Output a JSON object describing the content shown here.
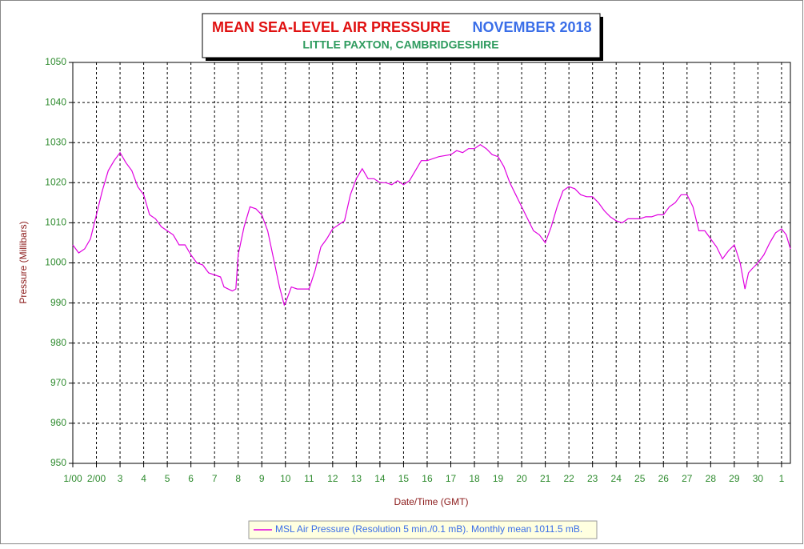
{
  "chart_data": {
    "type": "line",
    "title": "MEAN SEA-LEVEL AIR PRESSURE",
    "title_period": "NOVEMBER 2018",
    "subtitle": "LITTLE PAXTON, CAMBRIDGESHIRE",
    "x_label": "Date/Time (GMT)",
    "y_label": "Pressure (Millibars)",
    "grid": true,
    "legend": "bottom",
    "xlim": [
      0,
      30.375
    ],
    "ylim": [
      950,
      1050
    ],
    "yticks": [
      950,
      960,
      970,
      980,
      990,
      1000,
      1010,
      1020,
      1030,
      1040,
      1050
    ],
    "xticks": [
      {
        "value": 0,
        "label": "1/00"
      },
      {
        "value": 1,
        "label": "2/00"
      },
      {
        "value": 2,
        "label": "3"
      },
      {
        "value": 3,
        "label": "4"
      },
      {
        "value": 4,
        "label": "5"
      },
      {
        "value": 5,
        "label": "6"
      },
      {
        "value": 6,
        "label": "7"
      },
      {
        "value": 7,
        "label": "8"
      },
      {
        "value": 8,
        "label": "9"
      },
      {
        "value": 9,
        "label": "10"
      },
      {
        "value": 10,
        "label": "11"
      },
      {
        "value": 11,
        "label": "12"
      },
      {
        "value": 12,
        "label": "13"
      },
      {
        "value": 13,
        "label": "14"
      },
      {
        "value": 14,
        "label": "15"
      },
      {
        "value": 15,
        "label": "16"
      },
      {
        "value": 16,
        "label": "17"
      },
      {
        "value": 17,
        "label": "18"
      },
      {
        "value": 18,
        "label": "19"
      },
      {
        "value": 19,
        "label": "20"
      },
      {
        "value": 20,
        "label": "21"
      },
      {
        "value": 21,
        "label": "22"
      },
      {
        "value": 22,
        "label": "23"
      },
      {
        "value": 23,
        "label": "24"
      },
      {
        "value": 24,
        "label": "25"
      },
      {
        "value": 25,
        "label": "26"
      },
      {
        "value": 26,
        "label": "27"
      },
      {
        "value": 27,
        "label": "28"
      },
      {
        "value": 28,
        "label": "29"
      },
      {
        "value": 29,
        "label": "30"
      },
      {
        "value": 30,
        "label": "1"
      }
    ],
    "x": [
      0,
      0.25,
      0.5,
      0.75,
      1,
      1.25,
      1.5,
      1.75,
      2,
      2.25,
      2.5,
      2.75,
      3,
      3.25,
      3.5,
      3.75,
      4,
      4.25,
      4.5,
      4.75,
      5,
      5.25,
      5.5,
      5.75,
      6,
      6.25,
      6.4,
      6.75,
      6.9,
      7,
      7.25,
      7.5,
      7.75,
      8,
      8.25,
      8.5,
      8.75,
      8.95,
      9,
      9.25,
      9.5,
      9.75,
      10,
      10.25,
      10.5,
      10.75,
      11,
      11.25,
      11.5,
      11.75,
      12,
      12.25,
      12.5,
      12.75,
      13,
      13.25,
      13.5,
      13.75,
      14,
      14.25,
      14.5,
      14.75,
      15,
      15.5,
      16,
      16.25,
      16.5,
      16.75,
      17,
      17.25,
      17.5,
      17.75,
      18,
      18.25,
      18.5,
      18.75,
      19,
      19.25,
      19.5,
      19.75,
      20,
      20.25,
      20.5,
      20.75,
      21,
      21.25,
      21.5,
      21.75,
      22,
      22.25,
      22.5,
      22.75,
      23,
      23.25,
      23.5,
      23.75,
      24,
      24.25,
      24.5,
      24.75,
      25,
      25.25,
      25.5,
      25.75,
      26,
      26.25,
      26.5,
      26.75,
      27,
      27.25,
      27.5,
      27.75,
      28,
      28.25,
      28.45,
      28.6,
      28.75,
      29,
      29.25,
      29.5,
      29.75,
      30,
      30.2,
      30.375
    ],
    "series": [
      {
        "name": "MSL Air Pressure (Resolution 5 min./0.1 mB). Monthly mean 1011.5 mB.",
        "color": "#e000e0",
        "values": [
          1004.5,
          1002.5,
          1003.5,
          1006,
          1012,
          1018,
          1023,
          1025.5,
          1027.5,
          1025,
          1023,
          1019,
          1017,
          1012,
          1011,
          1009,
          1008,
          1007,
          1004.5,
          1004.5,
          1002,
          1000,
          999.5,
          997.5,
          997,
          996.5,
          994,
          993,
          993.5,
          1002,
          1009,
          1014,
          1013.5,
          1012,
          1008,
          1001,
          994,
          989.5,
          990,
          994,
          993.5,
          993.5,
          993.5,
          998,
          1004,
          1006,
          1008.5,
          1009.5,
          1010.5,
          1017,
          1021,
          1023.5,
          1021,
          1021,
          1020,
          1020,
          1019.5,
          1020.5,
          1019.5,
          1020.5,
          1023,
          1025.5,
          1025.5,
          1026.5,
          1027,
          1028,
          1027.5,
          1028.5,
          1028.5,
          1029.5,
          1028.5,
          1027,
          1026.5,
          1024,
          1020,
          1017,
          1014,
          1011,
          1008,
          1007,
          1005,
          1009,
          1014,
          1018,
          1019,
          1018.5,
          1017,
          1016.5,
          1016.5,
          1015,
          1013,
          1011.5,
          1010.5,
          1010,
          1011,
          1011,
          1011,
          1011.5,
          1011.5,
          1012,
          1012,
          1014,
          1015,
          1017,
          1017,
          1014,
          1008,
          1008,
          1006,
          1004,
          1001,
          1003,
          1004.5,
          1000,
          993.5,
          997.5,
          998.5,
          1000,
          1002,
          1005,
          1007.5,
          1008.5,
          1007,
          1003.5
        ]
      }
    ]
  }
}
